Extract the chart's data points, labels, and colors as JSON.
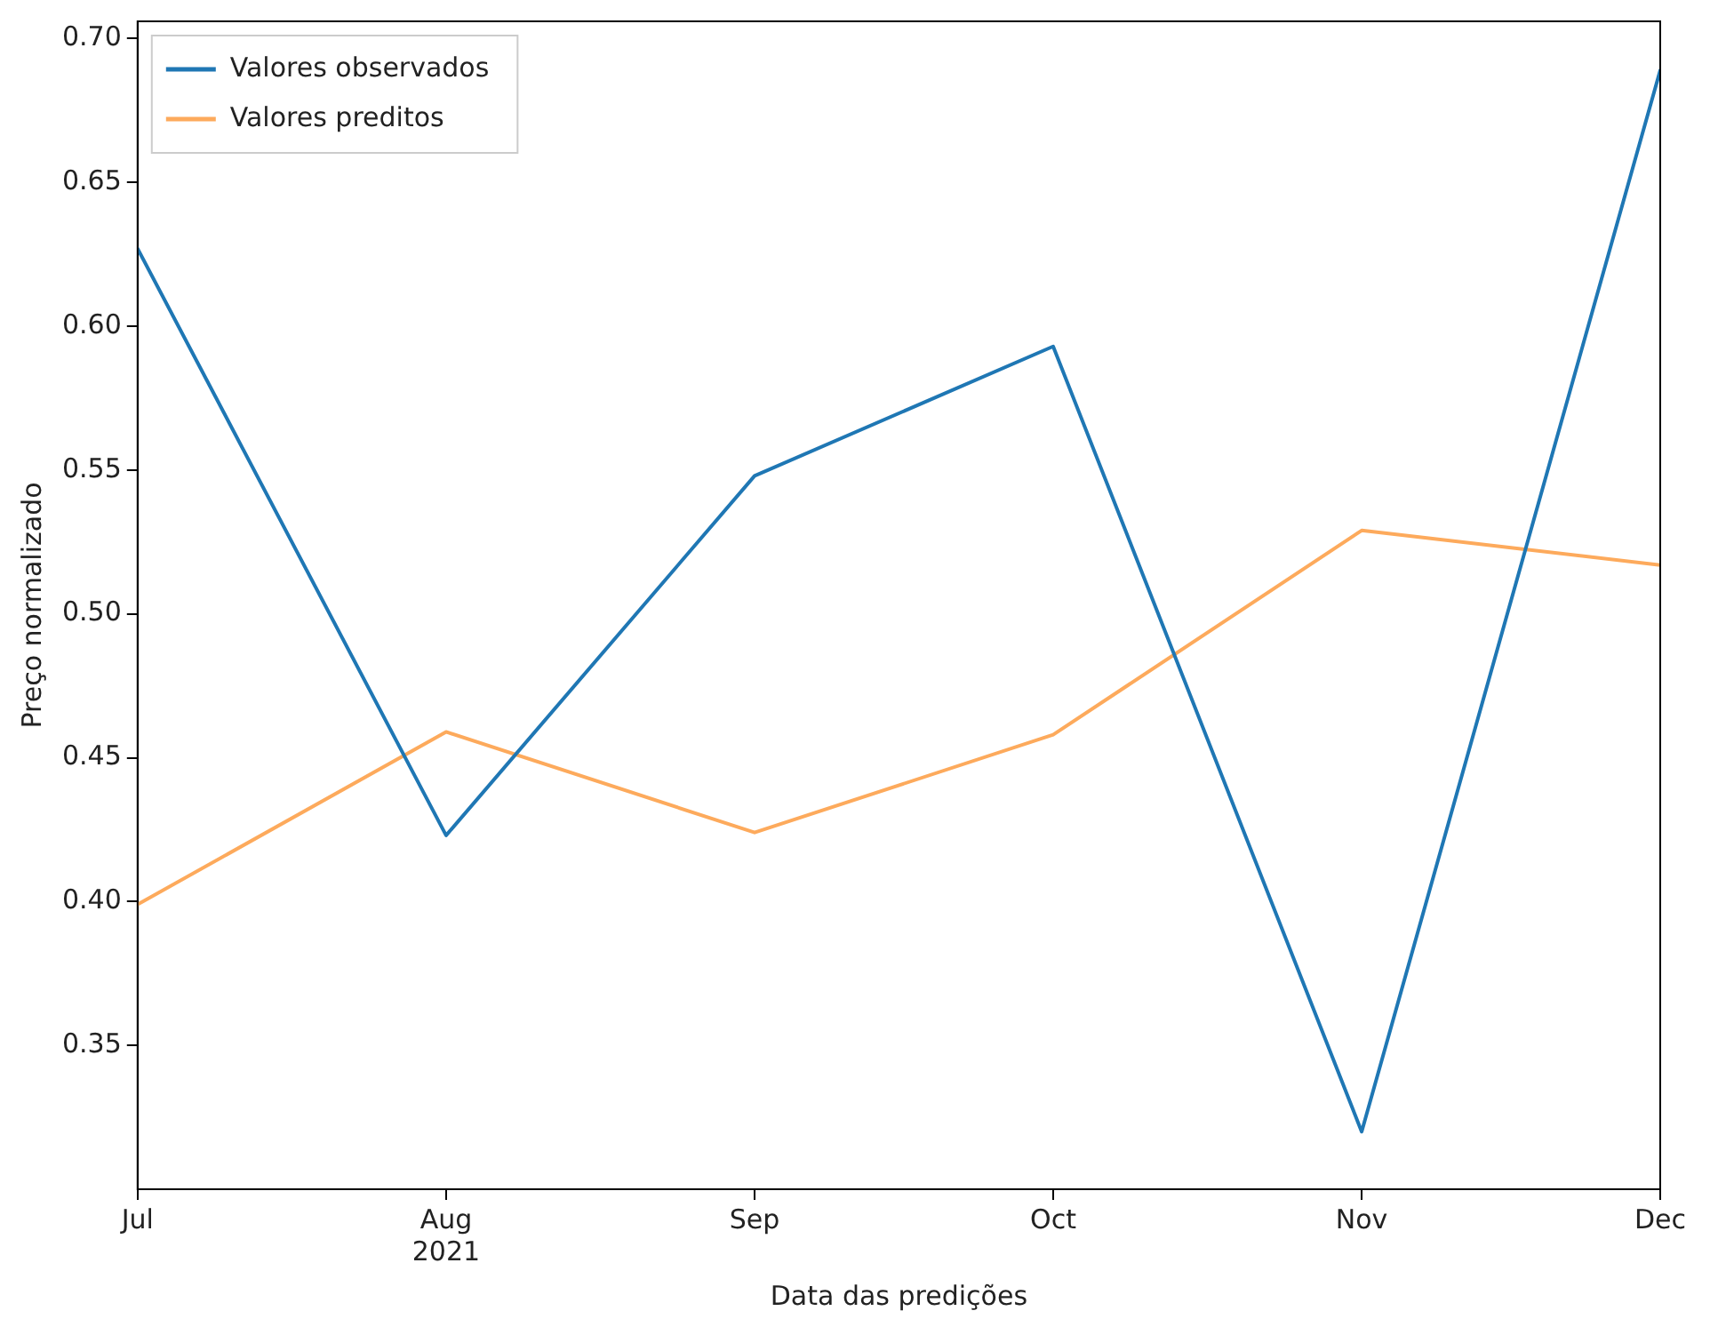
{
  "chart_data": {
    "type": "line",
    "xlabel": "Data das predições",
    "ylabel": "Preço normalizado",
    "x": [
      "2021-07",
      "2021-08",
      "2021-09",
      "2021-10",
      "2021-11",
      "2021-12"
    ],
    "xlim": [
      "2021-07",
      "2021-12"
    ],
    "xticks": [
      {
        "value": "2021-07",
        "label": "Jul"
      },
      {
        "value": "2021-08",
        "label": "Aug\n2021"
      },
      {
        "value": "2021-09",
        "label": "Sep"
      },
      {
        "value": "2021-10",
        "label": "Oct"
      },
      {
        "value": "2021-11",
        "label": "Nov"
      },
      {
        "value": "2021-12",
        "label": "Dec"
      }
    ],
    "ylim": [
      0.3,
      0.706
    ],
    "yticks": [
      {
        "value": 0.35,
        "label": "0.35"
      },
      {
        "value": 0.4,
        "label": "0.40"
      },
      {
        "value": 0.45,
        "label": "0.45"
      },
      {
        "value": 0.5,
        "label": "0.50"
      },
      {
        "value": 0.55,
        "label": "0.55"
      },
      {
        "value": 0.6,
        "label": "0.60"
      },
      {
        "value": 0.65,
        "label": "0.65"
      },
      {
        "value": 0.7,
        "label": "0.70"
      }
    ],
    "series": [
      {
        "name": "Valores observados",
        "color": "#1f77b4",
        "values": [
          0.627,
          0.423,
          0.548,
          0.593,
          0.32,
          0.689
        ]
      },
      {
        "name": "Valores preditos",
        "color": "#fdaa5c",
        "values": [
          0.399,
          0.459,
          0.424,
          0.458,
          0.529,
          0.517
        ]
      }
    ],
    "grid": false,
    "legend": "top left",
    "marker": "none",
    "line_style": "solid"
  }
}
